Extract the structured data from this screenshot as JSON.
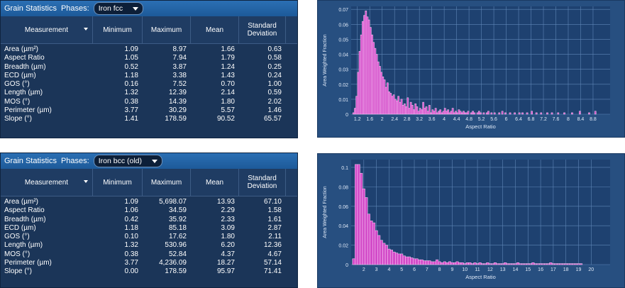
{
  "panels": [
    {
      "title": "Grain Statistics",
      "phase_label": "Phases:",
      "phase": "Iron fcc",
      "columns": [
        "Measurement",
        "Minimum",
        "Maximum",
        "Mean",
        "Standard Deviation"
      ],
      "rows": [
        [
          "Area (µm²)",
          "1.09",
          "8.97",
          "1.66",
          "0.63"
        ],
        [
          "Aspect Ratio",
          "1.05",
          "7.94",
          "1.79",
          "0.58"
        ],
        [
          "Breadth (µm)",
          "0.52",
          "3.87",
          "1.24",
          "0.25"
        ],
        [
          "ECD (µm)",
          "1.18",
          "3.38",
          "1.43",
          "0.24"
        ],
        [
          "GOS (°)",
          "0.16",
          "7.52",
          "0.70",
          "1.00"
        ],
        [
          "Length (µm)",
          "1.32",
          "12.39",
          "2.14",
          "0.59"
        ],
        [
          "MOS (°)",
          "0.38",
          "14.39",
          "1.80",
          "2.02"
        ],
        [
          "Perimeter (µm)",
          "3.77",
          "30.29",
          "5.57",
          "1.46"
        ],
        [
          "Slope (°)",
          "1.41",
          "178.59",
          "90.52",
          "65.57"
        ]
      ]
    },
    {
      "title": "Grain Statistics",
      "phase_label": "Phases:",
      "phase": "Iron bcc (old)",
      "columns": [
        "Measurement",
        "Minimum",
        "Maximum",
        "Mean",
        "Standard Deviation"
      ],
      "rows": [
        [
          "Area (µm²)",
          "1.09",
          "5,698.07",
          "13.93",
          "67.10"
        ],
        [
          "Aspect Ratio",
          "1.06",
          "34.59",
          "2.29",
          "1.58"
        ],
        [
          "Breadth (µm)",
          "0.42",
          "35.92",
          "2.33",
          "1.61"
        ],
        [
          "ECD (µm)",
          "1.18",
          "85.18",
          "3.09",
          "2.87"
        ],
        [
          "GOS (°)",
          "0.10",
          "17.62",
          "1.80",
          "2.11"
        ],
        [
          "Length (µm)",
          "1.32",
          "530.96",
          "6.20",
          "12.36"
        ],
        [
          "MOS (°)",
          "0.38",
          "52.84",
          "4.37",
          "4.67"
        ],
        [
          "Perimeter (µm)",
          "3.77",
          "4,236.09",
          "18.27",
          "57.14"
        ],
        [
          "Slope (°)",
          "0.00",
          "178.59",
          "95.97",
          "71.41"
        ]
      ]
    }
  ],
  "colors": {
    "panel_bg": "#1b3558",
    "header_blue": "#2b6fb4",
    "chart_bg": "#274f80",
    "plot_bg": "#1e4170",
    "bar_fill": "#d24bc8",
    "bar_stroke": "#ffd6fb"
  },
  "chart_data": [
    {
      "type": "bar",
      "xlabel": "Aspect Ratio",
      "ylabel": "Area Weighted Fraction",
      "xlim": [
        1.0,
        9.35
      ],
      "ylim": [
        0,
        0.072
      ],
      "yticks": [
        0,
        0.01,
        0.02,
        0.03,
        0.04,
        0.05,
        0.06,
        0.07
      ],
      "xticks": [
        1.2,
        1.6,
        2,
        2.4,
        2.8,
        3.2,
        3.6,
        4,
        4.4,
        4.8,
        5.2,
        5.6,
        6,
        6.4,
        6.8,
        7.2,
        7.6,
        8,
        8.4,
        8.8
      ],
      "grid": true,
      "bins_start": 1.05,
      "bin_width": 0.05,
      "values": [
        0.001,
        0.004,
        0.012,
        0.028,
        0.042,
        0.053,
        0.062,
        0.066,
        0.069,
        0.065,
        0.063,
        0.058,
        0.053,
        0.048,
        0.044,
        0.04,
        0.035,
        0.032,
        0.028,
        0.025,
        0.023,
        0.018,
        0.021,
        0.015,
        0.014,
        0.012,
        0.013,
        0.01,
        0.009,
        0.012,
        0.008,
        0.01,
        0.006,
        0.007,
        0.005,
        0.011,
        0.004,
        0.008,
        0.006,
        0.003,
        0.007,
        0.005,
        0.002,
        0.004,
        0.003,
        0.008,
        0.004,
        0.005,
        0.002,
        0.006,
        0.001,
        0.003,
        0.002,
        0.004,
        0.001,
        0.002,
        0.003,
        0.001,
        0.002,
        0.004,
        0.002,
        0.003,
        0.001,
        0.002,
        0.004,
        0.001,
        0.002,
        0.001,
        0.003,
        0.002,
        0.001,
        0.002,
        0.001,
        0.001,
        0.002,
        0,
        0.001,
        0.002,
        0.001,
        0,
        0.001,
        0.002,
        0.001,
        0,
        0.001,
        0,
        0.001,
        0.002,
        0,
        0.001,
        0,
        0.001,
        0,
        0,
        0.001,
        0,
        0.002,
        0,
        0.001,
        0,
        0,
        0.001,
        0,
        0,
        0.001,
        0,
        0,
        0.001,
        0,
        0.001,
        0,
        0,
        0.001,
        0,
        0,
        0.002,
        0,
        0,
        0.001,
        0,
        0,
        0.001,
        0,
        0,
        0,
        0.001,
        0,
        0,
        0.001,
        0,
        0,
        0,
        0.001,
        0,
        0,
        0,
        0.001,
        0,
        0,
        0,
        0,
        0.001,
        0,
        0,
        0,
        0,
        0.002,
        0,
        0,
        0,
        0,
        0,
        0.001,
        0,
        0,
        0,
        0.002,
        0
      ]
    },
    {
      "type": "bar",
      "xlabel": "Aspect Ratio",
      "ylabel": "Area Weighted Fraction",
      "xlim": [
        1.0,
        21.5
      ],
      "ylim": [
        0,
        0.108
      ],
      "yticks": [
        0,
        0.02,
        0.04,
        0.06,
        0.08,
        0.1
      ],
      "xticks": [
        2,
        3,
        4,
        5,
        6,
        7,
        8,
        9,
        10,
        11,
        12,
        13,
        14,
        15,
        16,
        17,
        18,
        19,
        20
      ],
      "grid": true,
      "bins_start": 1.1,
      "bin_width": 0.2,
      "values": [
        0.006,
        0.103,
        0.103,
        0.094,
        0.078,
        0.069,
        0.052,
        0.045,
        0.043,
        0.035,
        0.03,
        0.025,
        0.022,
        0.02,
        0.016,
        0.015,
        0.013,
        0.012,
        0.011,
        0.011,
        0.009,
        0.008,
        0.008,
        0.007,
        0.006,
        0.006,
        0.005,
        0.005,
        0.004,
        0.004,
        0.004,
        0.003,
        0.003,
        0.005,
        0.003,
        0.002,
        0.003,
        0.002,
        0.003,
        0.002,
        0.002,
        0.003,
        0.002,
        0.002,
        0.001,
        0.002,
        0.002,
        0.001,
        0.002,
        0.001,
        0.002,
        0.001,
        0.001,
        0.002,
        0.001,
        0.001,
        0.002,
        0.001,
        0.001,
        0.001,
        0.002,
        0.001,
        0.001,
        0.001,
        0.001,
        0.002,
        0.001,
        0.001,
        0.001,
        0.001,
        0.001,
        0.002,
        0.001,
        0.001,
        0.001,
        0.001,
        0.001,
        0.001,
        0.002,
        0.001,
        0.001,
        0.001,
        0.001,
        0.001,
        0.001,
        0.001,
        0.001,
        0.001,
        0.001,
        0.001,
        0.001,
        0,
        0,
        0,
        0,
        0
      ]
    }
  ]
}
